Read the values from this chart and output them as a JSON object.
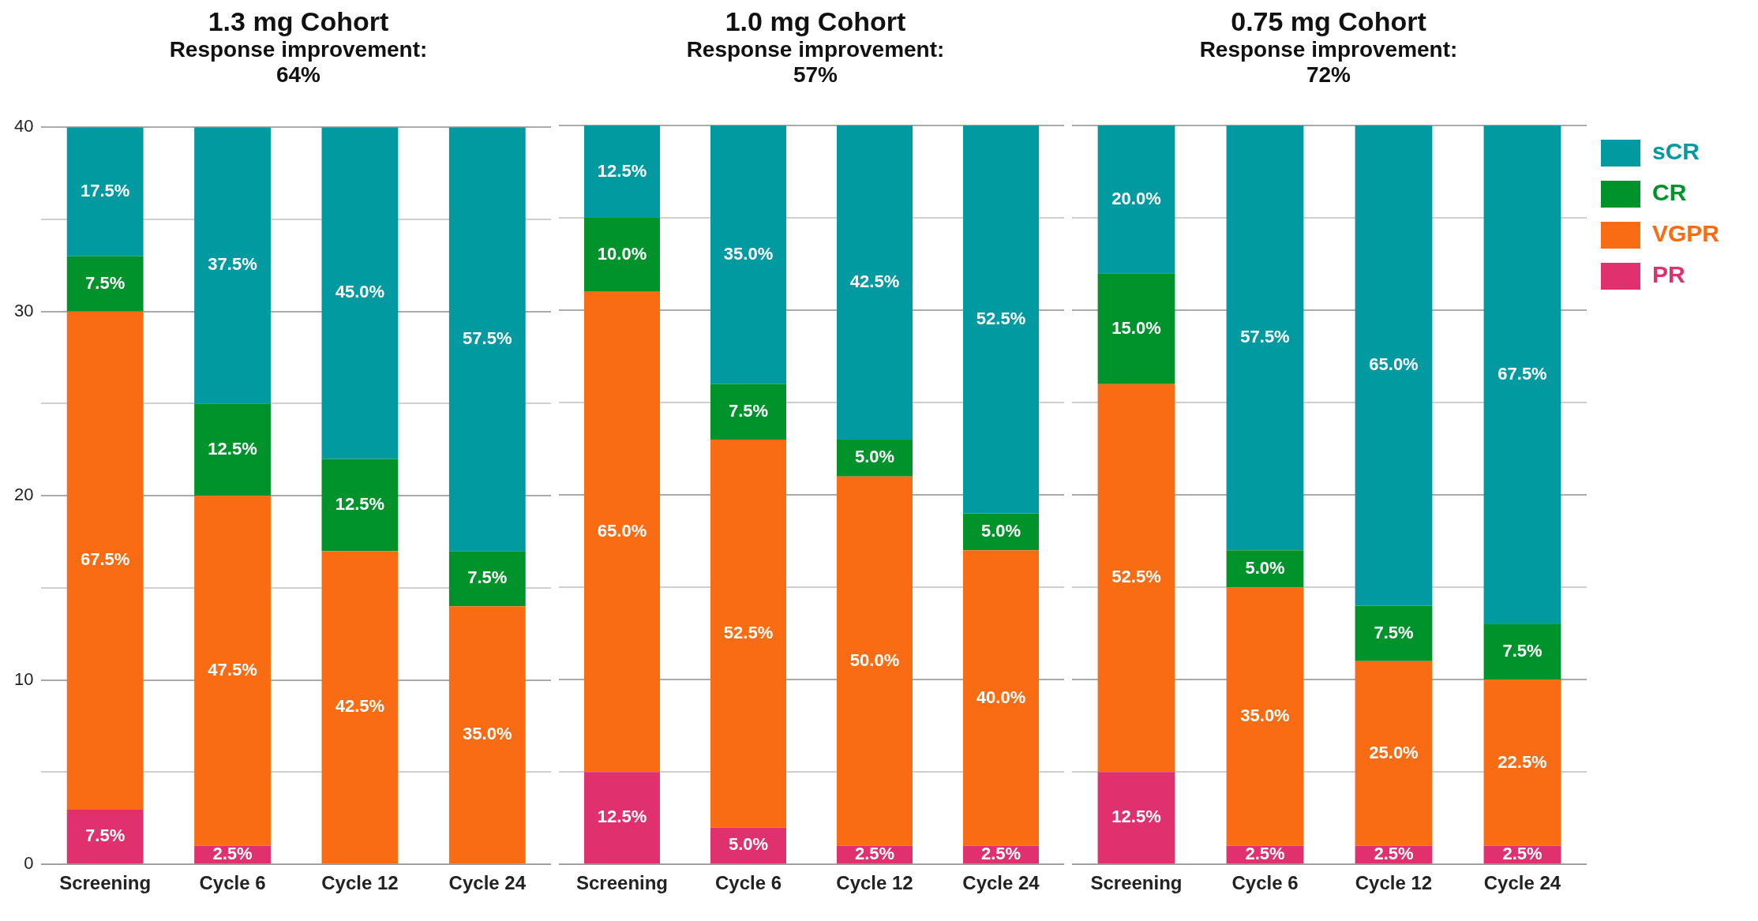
{
  "chart_data": [
    {
      "type": "bar",
      "title": "1.3 mg Cohort",
      "subtitle": "Response improvement: 64%",
      "categories": [
        "Screening",
        "Cycle 6",
        "Cycle 12",
        "Cycle 24"
      ],
      "stacked": true,
      "ylim": [
        0,
        40
      ],
      "yticks": [
        0,
        {
          "value": 5,
          "label": null
        },
        10,
        {
          "value": 15,
          "label": null
        },
        20,
        {
          "value": 25,
          "label": null
        },
        30,
        {
          "value": 35,
          "label": null
        },
        40
      ],
      "grid": "y",
      "series": [
        {
          "color": "#e0306e",
          "values": [
            3,
            1,
            0,
            0
          ]
        },
        {
          "color": "#fa6c14",
          "values": [
            27,
            19,
            17,
            14
          ]
        },
        {
          "color": "#00922b",
          "values": [
            3,
            5,
            5,
            3
          ]
        },
        {
          "color": "#009aa0",
          "values": [
            7,
            15,
            18,
            23
          ]
        }
      ],
      "annotations": [
        "7.5%",
        "67.5%",
        "7.5%",
        "17.5%",
        "2.5%",
        "47.5%",
        "12.5%",
        "37.5%",
        "42.5%",
        "12.5%",
        "45.0%",
        "35.0%",
        "7.5%",
        "57.5%"
      ]
    },
    {
      "type": "bar",
      "title": "1.0 mg Cohort",
      "subtitle": "Response improvement: 57%",
      "categories": [
        "Screening",
        "Cycle 6",
        "Cycle 12",
        "Cycle 24"
      ],
      "stacked": true,
      "ylim": [
        0,
        40
      ],
      "yticks": [
        0,
        {
          "value": 5,
          "label": null
        },
        10,
        {
          "value": 15,
          "label": null
        },
        20,
        {
          "value": 25,
          "label": null
        },
        30,
        {
          "value": 35,
          "label": null
        },
        40
      ],
      "grid": "y",
      "tick_labels": "x",
      "series": [
        {
          "color": "#e0306e",
          "values": [
            5,
            2,
            1,
            1
          ]
        },
        {
          "color": "#fa6c14",
          "values": [
            26,
            21,
            20,
            16
          ]
        },
        {
          "color": "#00922b",
          "values": [
            4,
            3,
            2,
            2
          ]
        },
        {
          "color": "#009aa0",
          "values": [
            5,
            14,
            17,
            21
          ]
        }
      ],
      "annotations": [
        "12.5%",
        "65.0%",
        "10.0%",
        "12.5%",
        "5.0%",
        "52.5%",
        "7.5%",
        "35.0%",
        "2.5%",
        "50.0%",
        "5.0%",
        "42.5%",
        "2.5%",
        "40.0%",
        "5.0%",
        "52.5%"
      ]
    },
    {
      "type": "bar",
      "title": "0.75 mg Cohort",
      "subtitle": "Response improvement: 72%",
      "categories": [
        "Screening",
        "Cycle 6",
        "Cycle 12",
        "Cycle 24"
      ],
      "stacked": true,
      "ylim": [
        0,
        40
      ],
      "yticks": [
        0,
        {
          "value": 5,
          "label": null
        },
        10,
        {
          "value": 15,
          "label": null
        },
        20,
        {
          "value": 25,
          "label": null
        },
        30,
        {
          "value": 35,
          "label": null
        },
        40
      ],
      "grid": "y",
      "tick_labels": "x",
      "legend": "right",
      "series": [
        {
          "name": "PR",
          "color": "#e0306e",
          "values": [
            5,
            1,
            1,
            1
          ]
        },
        {
          "name": "VGPR",
          "color": "#fa6c14",
          "values": [
            21,
            14,
            10,
            9
          ]
        },
        {
          "name": "CR",
          "color": "#00922b",
          "values": [
            6,
            2,
            3,
            3
          ]
        },
        {
          "name": "sCR",
          "color": "#009aa0",
          "values": [
            8,
            23,
            26,
            27
          ]
        }
      ],
      "annotations": [
        "12.5%",
        "52.5%",
        "15.0%",
        "20.0%",
        "2.5%",
        "35.0%",
        "5.0%",
        "57.5%",
        "2.5%",
        "25.0%",
        "7.5%",
        "65.0%",
        "2.5%",
        "22.5%",
        "7.5%",
        "67.5%"
      ]
    }
  ]
}
